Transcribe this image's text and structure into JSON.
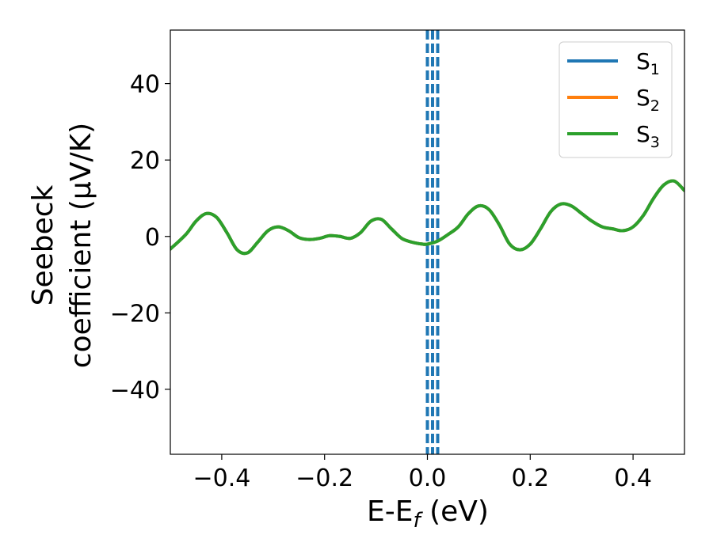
{
  "chart_data": {
    "type": "line",
    "xlabel": "E-E",
    "xlabel_sub": "f",
    "xlabel_unit": " (eV)",
    "ylabel_line1": "Seebeck",
    "ylabel_line2": "coefficient  (μV/K)",
    "xlim": [
      -0.5,
      0.5
    ],
    "ylim": [
      -57,
      54
    ],
    "x_ticks": [
      -0.4,
      -0.2,
      0.0,
      0.2,
      0.4
    ],
    "x_tick_labels": [
      "−0.4",
      "−0.2",
      "0.0",
      "0.2",
      "0.4"
    ],
    "y_ticks": [
      -40,
      -20,
      0,
      20,
      40
    ],
    "y_tick_labels": [
      "−40",
      "−20",
      "0",
      "20",
      "40"
    ],
    "legend_placement": "top-right",
    "grid": false,
    "vertical_lines": [
      {
        "x": 0.0,
        "style": "dashed",
        "color": "#000000"
      },
      {
        "x": 0.0,
        "style": "dashed",
        "color": "#1f77b4"
      },
      {
        "x": 0.01,
        "style": "dashed",
        "color": "#1f77b4"
      },
      {
        "x": 0.02,
        "style": "dashed",
        "color": "#1f77b4"
      }
    ],
    "x": [
      -0.5,
      -0.47,
      -0.45,
      -0.43,
      -0.41,
      -0.39,
      -0.37,
      -0.35,
      -0.33,
      -0.31,
      -0.29,
      -0.27,
      -0.25,
      -0.23,
      -0.21,
      -0.19,
      -0.17,
      -0.15,
      -0.13,
      -0.11,
      -0.09,
      -0.07,
      -0.05,
      -0.03,
      -0.01,
      0.0,
      0.02,
      0.04,
      0.06,
      0.08,
      0.1,
      0.12,
      0.14,
      0.16,
      0.18,
      0.2,
      0.22,
      0.24,
      0.26,
      0.28,
      0.3,
      0.32,
      0.34,
      0.36,
      0.38,
      0.4,
      0.42,
      0.44,
      0.46,
      0.48,
      0.5
    ],
    "series": [
      {
        "name": "S",
        "sub": "1",
        "color": "#1f77b4",
        "values": [
          -3.3,
          0.5,
          4.0,
          6.0,
          5.0,
          1.0,
          -3.5,
          -4.3,
          -1.5,
          1.5,
          2.5,
          1.5,
          -0.3,
          -0.8,
          -0.5,
          0.2,
          0.0,
          -0.5,
          1.0,
          4.0,
          4.5,
          2.0,
          -0.5,
          -1.5,
          -2.0,
          -2.0,
          -1.2,
          0.5,
          2.5,
          6.0,
          8.0,
          7.0,
          3.0,
          -2.0,
          -3.5,
          -2.0,
          2.0,
          6.5,
          8.5,
          8.0,
          6.0,
          4.0,
          2.5,
          2.0,
          1.5,
          2.5,
          5.5,
          10.0,
          13.5,
          14.5,
          12.0
        ]
      },
      {
        "name": "S",
        "sub": "2",
        "color": "#ff7f0e",
        "values": [
          -3.3,
          0.5,
          4.0,
          6.0,
          5.0,
          1.0,
          -3.5,
          -4.3,
          -1.5,
          1.5,
          2.5,
          1.5,
          -0.3,
          -0.8,
          -0.5,
          0.2,
          0.0,
          -0.5,
          1.0,
          4.0,
          4.5,
          2.0,
          -0.5,
          -1.5,
          -2.0,
          -2.0,
          -1.2,
          0.5,
          2.5,
          6.0,
          8.0,
          7.0,
          3.0,
          -2.0,
          -3.5,
          -2.0,
          2.0,
          6.5,
          8.5,
          8.0,
          6.0,
          4.0,
          2.5,
          2.0,
          1.5,
          2.5,
          5.5,
          10.0,
          13.5,
          14.5,
          12.0
        ]
      },
      {
        "name": "S",
        "sub": "3",
        "color": "#2ca02c",
        "values": [
          -3.3,
          0.5,
          4.0,
          6.0,
          5.0,
          1.0,
          -3.5,
          -4.3,
          -1.5,
          1.5,
          2.5,
          1.5,
          -0.3,
          -0.8,
          -0.5,
          0.2,
          0.0,
          -0.5,
          1.0,
          4.0,
          4.5,
          2.0,
          -0.5,
          -1.5,
          -2.0,
          -2.0,
          -1.2,
          0.5,
          2.5,
          6.0,
          8.0,
          7.0,
          3.0,
          -2.0,
          -3.5,
          -2.0,
          2.0,
          6.5,
          8.5,
          8.0,
          6.0,
          4.0,
          2.5,
          2.0,
          1.5,
          2.5,
          5.5,
          10.0,
          13.5,
          14.5,
          12.0
        ]
      }
    ]
  }
}
